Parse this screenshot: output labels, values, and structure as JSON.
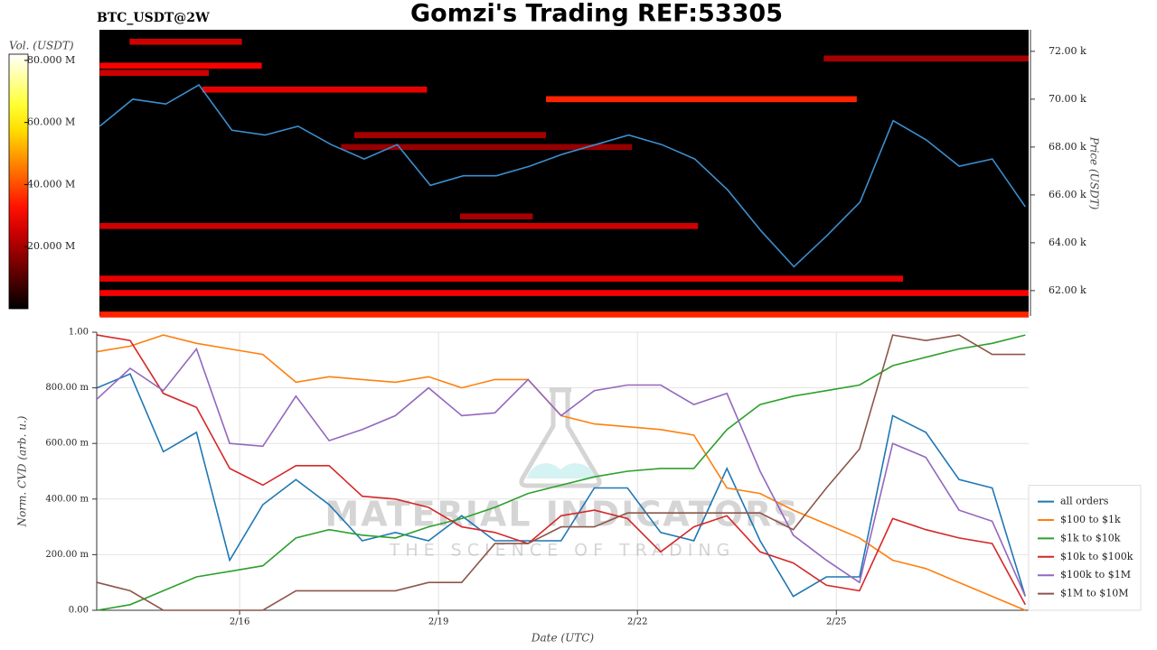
{
  "header": {
    "title": "Gomzi's Trading REF:53305",
    "symbol": "BTC_USDT@2W"
  },
  "watermark": {
    "name": "MATERIAL INDICATORS",
    "tagline": "THE SCIENCE OF TRADING"
  },
  "chart_data": [
    {
      "type": "heatmap",
      "ylabel": "Price (USDT)",
      "xlim": [
        13.845,
        27.9
      ],
      "ylim": [
        60940,
        72900
      ],
      "yticks": [
        {
          "value": 62000,
          "label": "62.00 k"
        },
        {
          "value": 64000,
          "label": "64.00 k"
        },
        {
          "value": 66000,
          "label": "66.00 k"
        },
        {
          "value": 68000,
          "label": "68.00 k"
        },
        {
          "value": 70000,
          "label": "70.00 k"
        },
        {
          "value": 72000,
          "label": "72.00 k"
        }
      ],
      "x": [
        13.85,
        14.35,
        14.85,
        15.35,
        15.85,
        16.35,
        16.85,
        17.35,
        17.85,
        18.35,
        18.85,
        19.35,
        19.85,
        20.35,
        20.85,
        21.35,
        21.85,
        22.35,
        22.85,
        23.35,
        23.85,
        24.35,
        24.85,
        25.35,
        25.85,
        26.35,
        26.85,
        27.35,
        27.85
      ],
      "price": {
        "color": "#3a8fd0",
        "values": [
          68870,
          70000,
          69800,
          70600,
          68700,
          68500,
          68870,
          68100,
          67500,
          68100,
          66400,
          66800,
          66800,
          67200,
          67700,
          68100,
          68500,
          68100,
          67500,
          66200,
          64500,
          63000,
          64300,
          65700,
          69100,
          68300,
          67200,
          67500,
          65500
        ]
      },
      "bands": [
        {
          "x0": 13.85,
          "x1": 27.9,
          "price": 61000,
          "volume": 35000000
        },
        {
          "x0": 13.85,
          "x1": 27.9,
          "price": 61900,
          "volume": 30000000
        },
        {
          "x0": 13.85,
          "x1": 26.0,
          "price": 62500,
          "volume": 28000000
        },
        {
          "x0": 13.85,
          "x1": 22.9,
          "price": 64700,
          "volume": 25000000
        },
        {
          "x0": 19.3,
          "x1": 20.4,
          "price": 65100,
          "volume": 20000000
        },
        {
          "x0": 20.6,
          "x1": 25.3,
          "price": 70000,
          "volume": 35000000
        },
        {
          "x0": 15.4,
          "x1": 18.8,
          "price": 70400,
          "volume": 28000000
        },
        {
          "x0": 13.85,
          "x1": 16.3,
          "price": 71400,
          "volume": 30000000
        },
        {
          "x0": 13.85,
          "x1": 15.5,
          "price": 71100,
          "volume": 25000000
        },
        {
          "x0": 14.3,
          "x1": 16.0,
          "price": 72400,
          "volume": 25000000
        },
        {
          "x0": 17.7,
          "x1": 20.6,
          "price": 68500,
          "volume": 20000000
        },
        {
          "x0": 17.5,
          "x1": 21.9,
          "price": 68000,
          "volume": 18000000
        },
        {
          "x0": 24.8,
          "x1": 27.9,
          "price": 71700,
          "volume": 20000000
        }
      ],
      "colorbar": {
        "label": "Vol. (USDT)",
        "colormap": "hot",
        "lim": [
          0,
          82000000
        ],
        "ticks": [
          {
            "value": 20000000,
            "label": "20.000 M"
          },
          {
            "value": 40000000,
            "label": "40.000 M"
          },
          {
            "value": 60000000,
            "label": "60.000 M"
          },
          {
            "value": 80000000,
            "label": "80.000 M"
          }
        ]
      }
    },
    {
      "type": "line",
      "xlabel": "Date (UTC)",
      "ylabel": "Norm. CVD (arb. u.)",
      "grid": true,
      "legend": "lower right",
      "xlim": [
        13.845,
        27.9
      ],
      "xticks": [
        {
          "value": 16,
          "label": "2/16"
        },
        {
          "value": 19,
          "label": "2/19"
        },
        {
          "value": 22,
          "label": "2/22"
        },
        {
          "value": 25,
          "label": "2/25"
        }
      ],
      "ylim": [
        0,
        1
      ],
      "yticks": [
        {
          "value": 0,
          "label": "0.00"
        },
        {
          "value": 0.2,
          "label": "200.00 m"
        },
        {
          "value": 0.4,
          "label": "400.00 m"
        },
        {
          "value": 0.6,
          "label": "600.00 m"
        },
        {
          "value": 0.8,
          "label": "800.00 m"
        },
        {
          "value": 1,
          "label": "1.00"
        }
      ],
      "x": [
        13.85,
        14.35,
        14.85,
        15.35,
        15.85,
        16.35,
        16.85,
        17.35,
        17.85,
        18.35,
        18.85,
        19.35,
        19.85,
        20.35,
        20.85,
        21.35,
        21.85,
        22.35,
        22.85,
        23.35,
        23.85,
        24.35,
        24.85,
        25.35,
        25.85,
        26.35,
        26.85,
        27.35,
        27.85
      ],
      "series": [
        {
          "name": "all orders",
          "color": "#1f77b4",
          "values": [
            0.8,
            0.85,
            0.57,
            0.64,
            0.18,
            0.38,
            0.47,
            0.38,
            0.25,
            0.28,
            0.25,
            0.34,
            0.25,
            0.25,
            0.25,
            0.44,
            0.44,
            0.28,
            0.25,
            0.51,
            0.25,
            0.05,
            0.12,
            0.12,
            0.7,
            0.64,
            0.47,
            0.44,
            0.05
          ]
        },
        {
          "name": "$100 to $1k",
          "color": "#ff7f0e",
          "values": [
            0.93,
            0.95,
            0.99,
            0.96,
            0.94,
            0.92,
            0.82,
            0.84,
            0.83,
            0.82,
            0.84,
            0.8,
            0.83,
            0.83,
            0.7,
            0.67,
            0.66,
            0.65,
            0.63,
            0.44,
            0.42,
            0.36,
            0.31,
            0.26,
            0.18,
            0.15,
            0.1,
            0.05,
            0.0
          ]
        },
        {
          "name": "$1k to $10k",
          "color": "#2ca02c",
          "values": [
            0.0,
            0.02,
            0.07,
            0.12,
            0.14,
            0.16,
            0.26,
            0.29,
            0.27,
            0.26,
            0.3,
            0.33,
            0.37,
            0.42,
            0.45,
            0.48,
            0.5,
            0.51,
            0.51,
            0.65,
            0.74,
            0.77,
            0.79,
            0.81,
            0.88,
            0.91,
            0.94,
            0.96,
            0.99
          ]
        },
        {
          "name": "$10k to $100k",
          "color": "#d62728",
          "values": [
            0.99,
            0.97,
            0.78,
            0.73,
            0.51,
            0.45,
            0.52,
            0.52,
            0.41,
            0.4,
            0.37,
            0.3,
            0.28,
            0.24,
            0.34,
            0.36,
            0.33,
            0.21,
            0.3,
            0.34,
            0.21,
            0.17,
            0.09,
            0.07,
            0.33,
            0.29,
            0.26,
            0.24,
            0.02
          ]
        },
        {
          "name": "$100k to $1M",
          "color": "#9467bd",
          "values": [
            0.76,
            0.87,
            0.79,
            0.94,
            0.6,
            0.59,
            0.77,
            0.61,
            0.65,
            0.7,
            0.8,
            0.7,
            0.71,
            0.83,
            0.7,
            0.79,
            0.81,
            0.81,
            0.74,
            0.78,
            0.5,
            0.27,
            0.18,
            0.1,
            0.6,
            0.55,
            0.36,
            0.32,
            0.05
          ]
        },
        {
          "name": "$1M to $10M",
          "color": "#8c564b",
          "values": [
            0.1,
            0.07,
            0.0,
            0.0,
            0.0,
            0.0,
            0.07,
            0.07,
            0.07,
            0.07,
            0.1,
            0.1,
            0.24,
            0.24,
            0.3,
            0.3,
            0.35,
            0.35,
            0.35,
            0.35,
            0.35,
            0.29,
            0.44,
            0.58,
            0.99,
            0.97,
            0.99,
            0.92,
            0.92
          ]
        }
      ]
    }
  ]
}
